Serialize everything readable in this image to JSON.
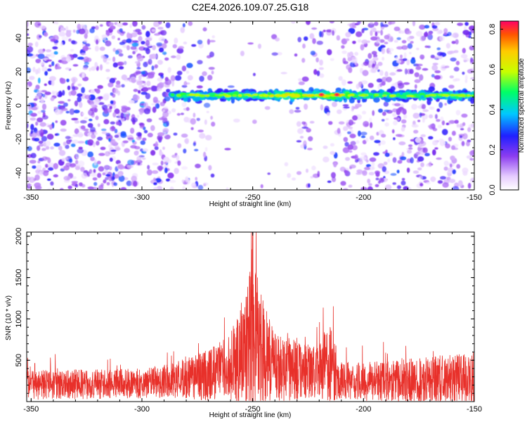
{
  "title": "C2E4.2026.109.07.25.G18",
  "chart_data": [
    {
      "type": "heatmap",
      "name": "spectrogram",
      "xlabel": "Height of straight line (km)",
      "ylabel": "Frequency (Hz)",
      "xlim": [
        -352,
        -150
      ],
      "ylim": [
        -50,
        50
      ],
      "x_ticks": [
        -350,
        -300,
        -250,
        -200,
        -150
      ],
      "y_ticks": [
        -40,
        -20,
        0,
        20,
        40
      ],
      "band": {
        "x_range": [
          -288,
          -150
        ],
        "center_frequency_hz": 6,
        "half_width_hz": 4,
        "peak_x": [
          -219,
          -212
        ],
        "peak_value": 0.82
      },
      "noise_regions": [
        {
          "x_range": [
            -352,
            -288
          ],
          "density": "high"
        },
        {
          "x_range": [
            -288,
            -268
          ],
          "density": "low"
        },
        {
          "x_range": [
            -268,
            -230
          ],
          "density": "very low"
        },
        {
          "x_range": [
            -230,
            -210
          ],
          "density": "low"
        },
        {
          "x_range": [
            -210,
            -150
          ],
          "density": "medium"
        }
      ],
      "colorbar": {
        "label": "Normalized spectral amplitude",
        "range": [
          0.0,
          0.84
        ],
        "ticks": [
          "0.0",
          "0.2",
          "0.4",
          "0.6",
          "0.8"
        ]
      }
    },
    {
      "type": "line",
      "name": "snr",
      "xlabel": "Height of straight line (km)",
      "ylabel": "SNR (10 * v/v)",
      "xlim": [
        -352,
        -150
      ],
      "ylim": [
        0,
        2050
      ],
      "x_ticks": [
        -350,
        -300,
        -250,
        -200,
        -150
      ],
      "y_ticks": [
        500,
        1000,
        1500,
        2000
      ],
      "color": "#e8302a",
      "envelope": [
        {
          "x": -352,
          "base": 200,
          "amp": 200
        },
        {
          "x": -300,
          "base": 220,
          "amp": 200
        },
        {
          "x": -285,
          "base": 260,
          "amp": 240
        },
        {
          "x": -270,
          "base": 320,
          "amp": 350
        },
        {
          "x": -260,
          "base": 420,
          "amp": 450
        },
        {
          "x": -253,
          "base": 650,
          "amp": 800
        },
        {
          "x": -250,
          "base": 900,
          "amp": 1100
        },
        {
          "x": -247,
          "base": 650,
          "amp": 800
        },
        {
          "x": -240,
          "base": 420,
          "amp": 450
        },
        {
          "x": -232,
          "base": 380,
          "amp": 420
        },
        {
          "x": -222,
          "base": 350,
          "amp": 350
        },
        {
          "x": -215,
          "base": 450,
          "amp": 550
        },
        {
          "x": -212,
          "base": 250,
          "amp": 250
        },
        {
          "x": -200,
          "base": 240,
          "amp": 260
        },
        {
          "x": -180,
          "base": 250,
          "amp": 300
        },
        {
          "x": -160,
          "base": 260,
          "amp": 350
        },
        {
          "x": -150,
          "base": 260,
          "amp": 350
        }
      ],
      "peak": {
        "x": -250,
        "y": 2050
      }
    }
  ]
}
